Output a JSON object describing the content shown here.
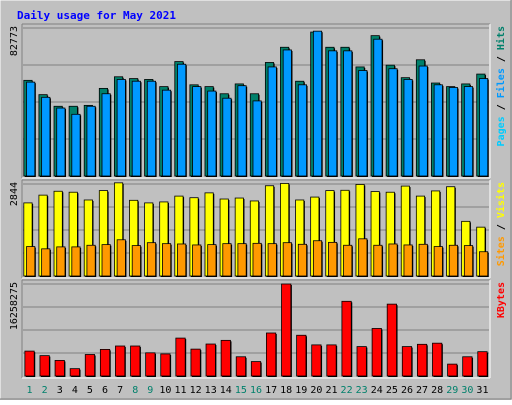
{
  "chart_data": {
    "type": "bar",
    "title": "Daily usage for May 2021",
    "days": [
      "1",
      "2",
      "3",
      "4",
      "5",
      "6",
      "7",
      "8",
      "9",
      "10",
      "11",
      "12",
      "13",
      "14",
      "15",
      "16",
      "17",
      "18",
      "19",
      "20",
      "21",
      "22",
      "23",
      "24",
      "25",
      "26",
      "27",
      "28",
      "29",
      "30",
      "31"
    ],
    "weekend_days": [
      "1",
      "2",
      "8",
      "9",
      "15",
      "16",
      "22",
      "23",
      "29",
      "30"
    ],
    "panels": [
      {
        "id": "hits_files_pages",
        "ymax": 82773,
        "ymax_label": "82773",
        "legend": [
          "Pages",
          "Files",
          "Hits"
        ],
        "series": [
          {
            "name": "Hits",
            "color": "#00806b",
            "values": [
              53500,
              45500,
              39000,
              39000,
              39500,
              49000,
              55500,
              54500,
              54000,
              50000,
              64000,
              51000,
              50000,
              46000,
              51500,
              46000,
              63500,
              72000,
              53000,
              80500,
              72000,
              72000,
              61000,
              78500,
              62000,
              55000,
              65000,
              52000,
              50000,
              51500,
              57000
            ]
          },
          {
            "name": "Files",
            "color": "#0099ff",
            "values": [
              52500,
              44000,
              38000,
              34500,
              39000,
              46000,
              54000,
              53000,
              53000,
              48000,
              62500,
              50000,
              47500,
              43500,
              50500,
              42000,
              61000,
              70500,
              51000,
              81000,
              70000,
              70000,
              59000,
              76500,
              60000,
              54000,
              61500,
              51000,
              49500,
              50000,
              54500
            ]
          }
        ]
      },
      {
        "id": "visits_sites",
        "ymax": 2844,
        "ymax_label": "2844",
        "legend": [
          "Sites",
          "Visits"
        ],
        "series": [
          {
            "name": "Visits",
            "color": "#ffff00",
            "values": [
              2260,
              2500,
              2620,
              2590,
              2350,
              2640,
              2880,
              2340,
              2260,
              2290,
              2470,
              2420,
              2570,
              2380,
              2410,
              2320,
              2790,
              2860,
              2350,
              2440,
              2640,
              2650,
              2830,
              2610,
              2590,
              2780,
              2470,
              2630,
              2760,
              1690,
              1510
            ]
          },
          {
            "name": "Sites",
            "color": "#ff9900",
            "values": [
              910,
              840,
              900,
              900,
              950,
              970,
              1120,
              940,
              1030,
              1000,
              990,
              960,
              970,
              1000,
              1000,
              1010,
              1000,
              1030,
              980,
              1090,
              1040,
              950,
              1150,
              950,
              990,
              960,
              980,
              910,
              950,
              940,
              750
            ]
          }
        ]
      },
      {
        "id": "kbytes",
        "ymax": 16258275,
        "ymax_label": "16258275",
        "legend": [
          "KBytes"
        ],
        "series": [
          {
            "name": "KBytes",
            "color": "#ff0000",
            "values": [
              4400000,
              3600000,
              2750000,
              1300000,
              3800000,
              4700000,
              5300000,
              5300000,
              4100000,
              3900000,
              6700000,
              4750000,
              5650000,
              6300000,
              3400000,
              2550000,
              7600000,
              16258275,
              7200000,
              5500000,
              5500000,
              13200000,
              5200000,
              8400000,
              12700000,
              5200000,
              5600000,
              5800000,
              2100000,
              3400000,
              4300000
            ]
          }
        ]
      }
    ]
  },
  "colors": {
    "background": "#c0c0c0",
    "title": "#0000ff",
    "weekday_label": "#00806b",
    "weekend_label": "#00806b"
  }
}
